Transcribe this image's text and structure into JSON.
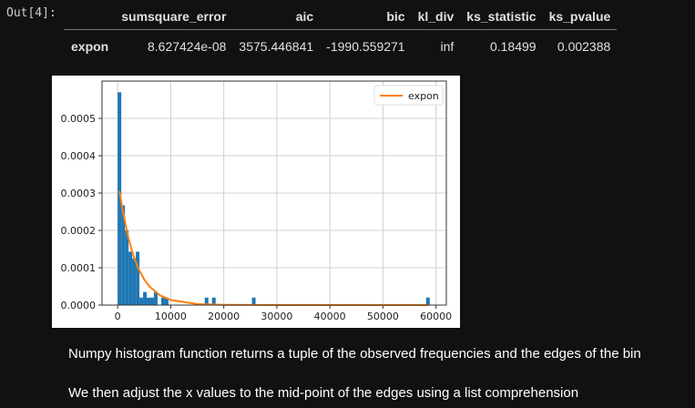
{
  "cell": {
    "prompt": "Out[4]:"
  },
  "table": {
    "columns": [
      "",
      "sumsquare_error",
      "aic",
      "bic",
      "kl_div",
      "ks_statistic",
      "ks_pvalue"
    ],
    "rows": [
      {
        "label": "expon",
        "values": [
          "8.627424e-08",
          "3575.446841",
          "-1990.559271",
          "inf",
          "0.18499",
          "0.002388"
        ]
      }
    ]
  },
  "markdown": [
    "Numpy histogram function returns a tuple of the observed frequencies and the edges of the bin",
    "We then adjust the x values to the mid-point of the edges using a list comprehension"
  ],
  "chart_data": {
    "type": "bar",
    "title": "",
    "xlabel": "",
    "ylabel": "",
    "xlim": [
      -2950,
      61950
    ],
    "ylim": [
      0,
      0.0006
    ],
    "grid": true,
    "legend": {
      "placement": "top-right",
      "entries": [
        "expon"
      ]
    },
    "x_ticks": [
      0,
      10000,
      20000,
      30000,
      40000,
      50000,
      60000
    ],
    "x_tick_labels": [
      "0",
      "10000",
      "20000",
      "30000",
      "40000",
      "50000",
      "60000"
    ],
    "y_ticks": [
      0,
      0.0001,
      0.0002,
      0.0003,
      0.0004,
      0.0005
    ],
    "y_tick_labels": [
      "0.0000",
      "0.0001",
      "0.0002",
      "0.0003",
      "0.0004",
      "0.0005"
    ],
    "colors": {
      "histogram": "#1f77b4",
      "expon": "#ff7f0e",
      "grid": "#d0d0d0"
    },
    "histogram": {
      "bin_width": 684,
      "bins": [
        {
          "x0": 0,
          "density": 0.00057
        },
        {
          "x0": 684,
          "density": 0.000267
        },
        {
          "x0": 1368,
          "density": 0.0002
        },
        {
          "x0": 2052,
          "density": 0.000143
        },
        {
          "x0": 2736,
          "density": 0.000125
        },
        {
          "x0": 3420,
          "density": 0.000143
        },
        {
          "x0": 4104,
          "density": 2e-05
        },
        {
          "x0": 4788,
          "density": 3.5e-05
        },
        {
          "x0": 5472,
          "density": 2e-05
        },
        {
          "x0": 6156,
          "density": 2e-05
        },
        {
          "x0": 6840,
          "density": 3.5e-05
        },
        {
          "x0": 8208,
          "density": 2e-05
        },
        {
          "x0": 8892,
          "density": 2e-05
        },
        {
          "x0": 16416,
          "density": 2e-05
        },
        {
          "x0": 17784,
          "density": 2e-05
        },
        {
          "x0": 25308,
          "density": 2e-05
        },
        {
          "x0": 58140,
          "density": 2e-05
        }
      ]
    },
    "series": [
      {
        "name": "expon",
        "type": "line",
        "x": [
          342,
          1000,
          2000,
          3000,
          4000,
          5000,
          6000,
          8000,
          10000,
          15000,
          20000,
          30000,
          40000,
          50000,
          58482
        ],
        "y": [
          0.000305,
          0.00025,
          0.000181,
          0.000131,
          9.48e-05,
          6.86e-05,
          4.96e-05,
          2.6e-05,
          1.36e-05,
          2.8e-06,
          6e-07,
          0.0,
          0.0,
          0.0,
          0.0
        ]
      }
    ]
  }
}
